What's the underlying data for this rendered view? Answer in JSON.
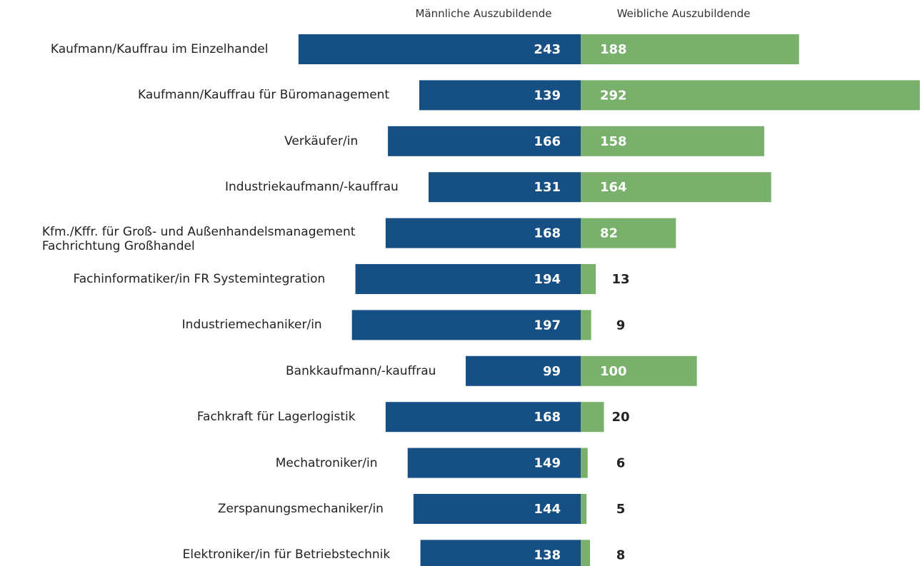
{
  "chart_data": {
    "type": "butterfly_bar",
    "categories": [
      "Kaufmann/Kauffrau im Einzelhandel",
      "Kaufmann/Kauffrau für Büromanagement",
      "Verkäufer/in",
      "Industriekaufmann/-kauffrau",
      "Kfm./Kffr. für Groß- und Außenhandelsmanagement\nFachrichtung Großhandel",
      "Fachinformatiker/in FR Systemintegration",
      "Industriemechaniker/in",
      "Bankkaufmann/-kauffrau",
      "Fachkraft für Lagerlogistik",
      "Mechatroniker/in",
      "Zerspanungsmechaniker/in",
      "Elektroniker/in für Betriebstechnik"
    ],
    "series": [
      {
        "name": "Männliche Auszubildende",
        "color": "#164f84",
        "values": [
          243,
          139,
          166,
          131,
          168,
          194,
          197,
          99,
          168,
          149,
          144,
          138
        ]
      },
      {
        "name": "Weibliche Auszubildende",
        "color": "#79b06b",
        "values": [
          188,
          292,
          158,
          164,
          82,
          13,
          9,
          100,
          20,
          6,
          5,
          8
        ]
      }
    ]
  }
}
